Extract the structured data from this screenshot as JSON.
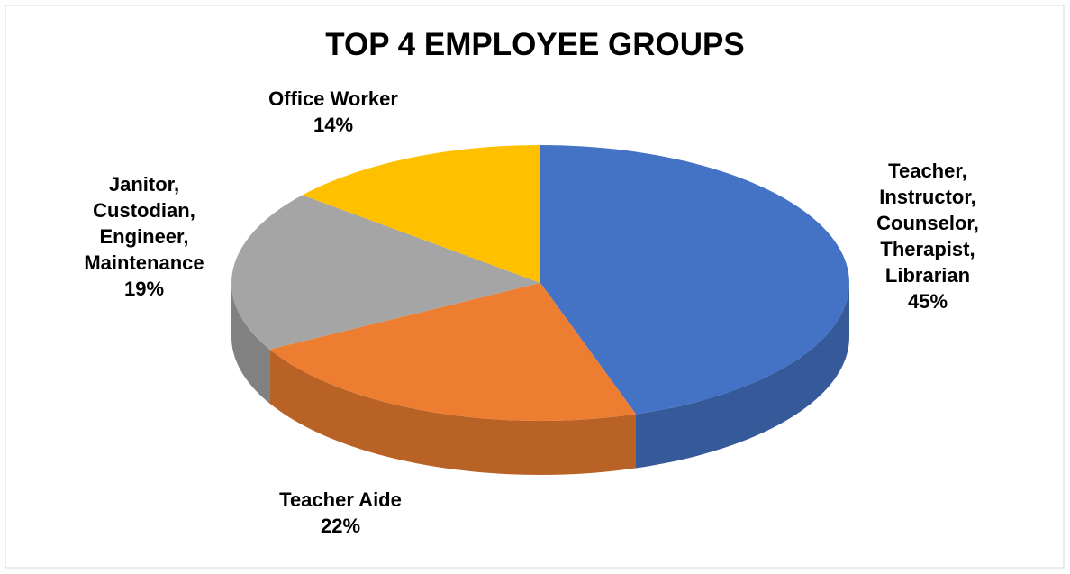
{
  "chart_data": {
    "type": "pie",
    "title": "TOP 4 EMPLOYEE GROUPS",
    "categories": [
      "Teacher, Instructor, Counselor, Therapist, Librarian",
      "Teacher Aide",
      "Janitor, Custodian, Engineer, Maintenance",
      "Office Worker"
    ],
    "values": [
      45,
      22,
      19,
      14
    ],
    "value_labels": [
      "45%",
      "22%",
      "19%",
      "14%"
    ],
    "colors": [
      "#4472c4",
      "#ed7d31",
      "#a5a5a5",
      "#ffc000"
    ]
  }
}
